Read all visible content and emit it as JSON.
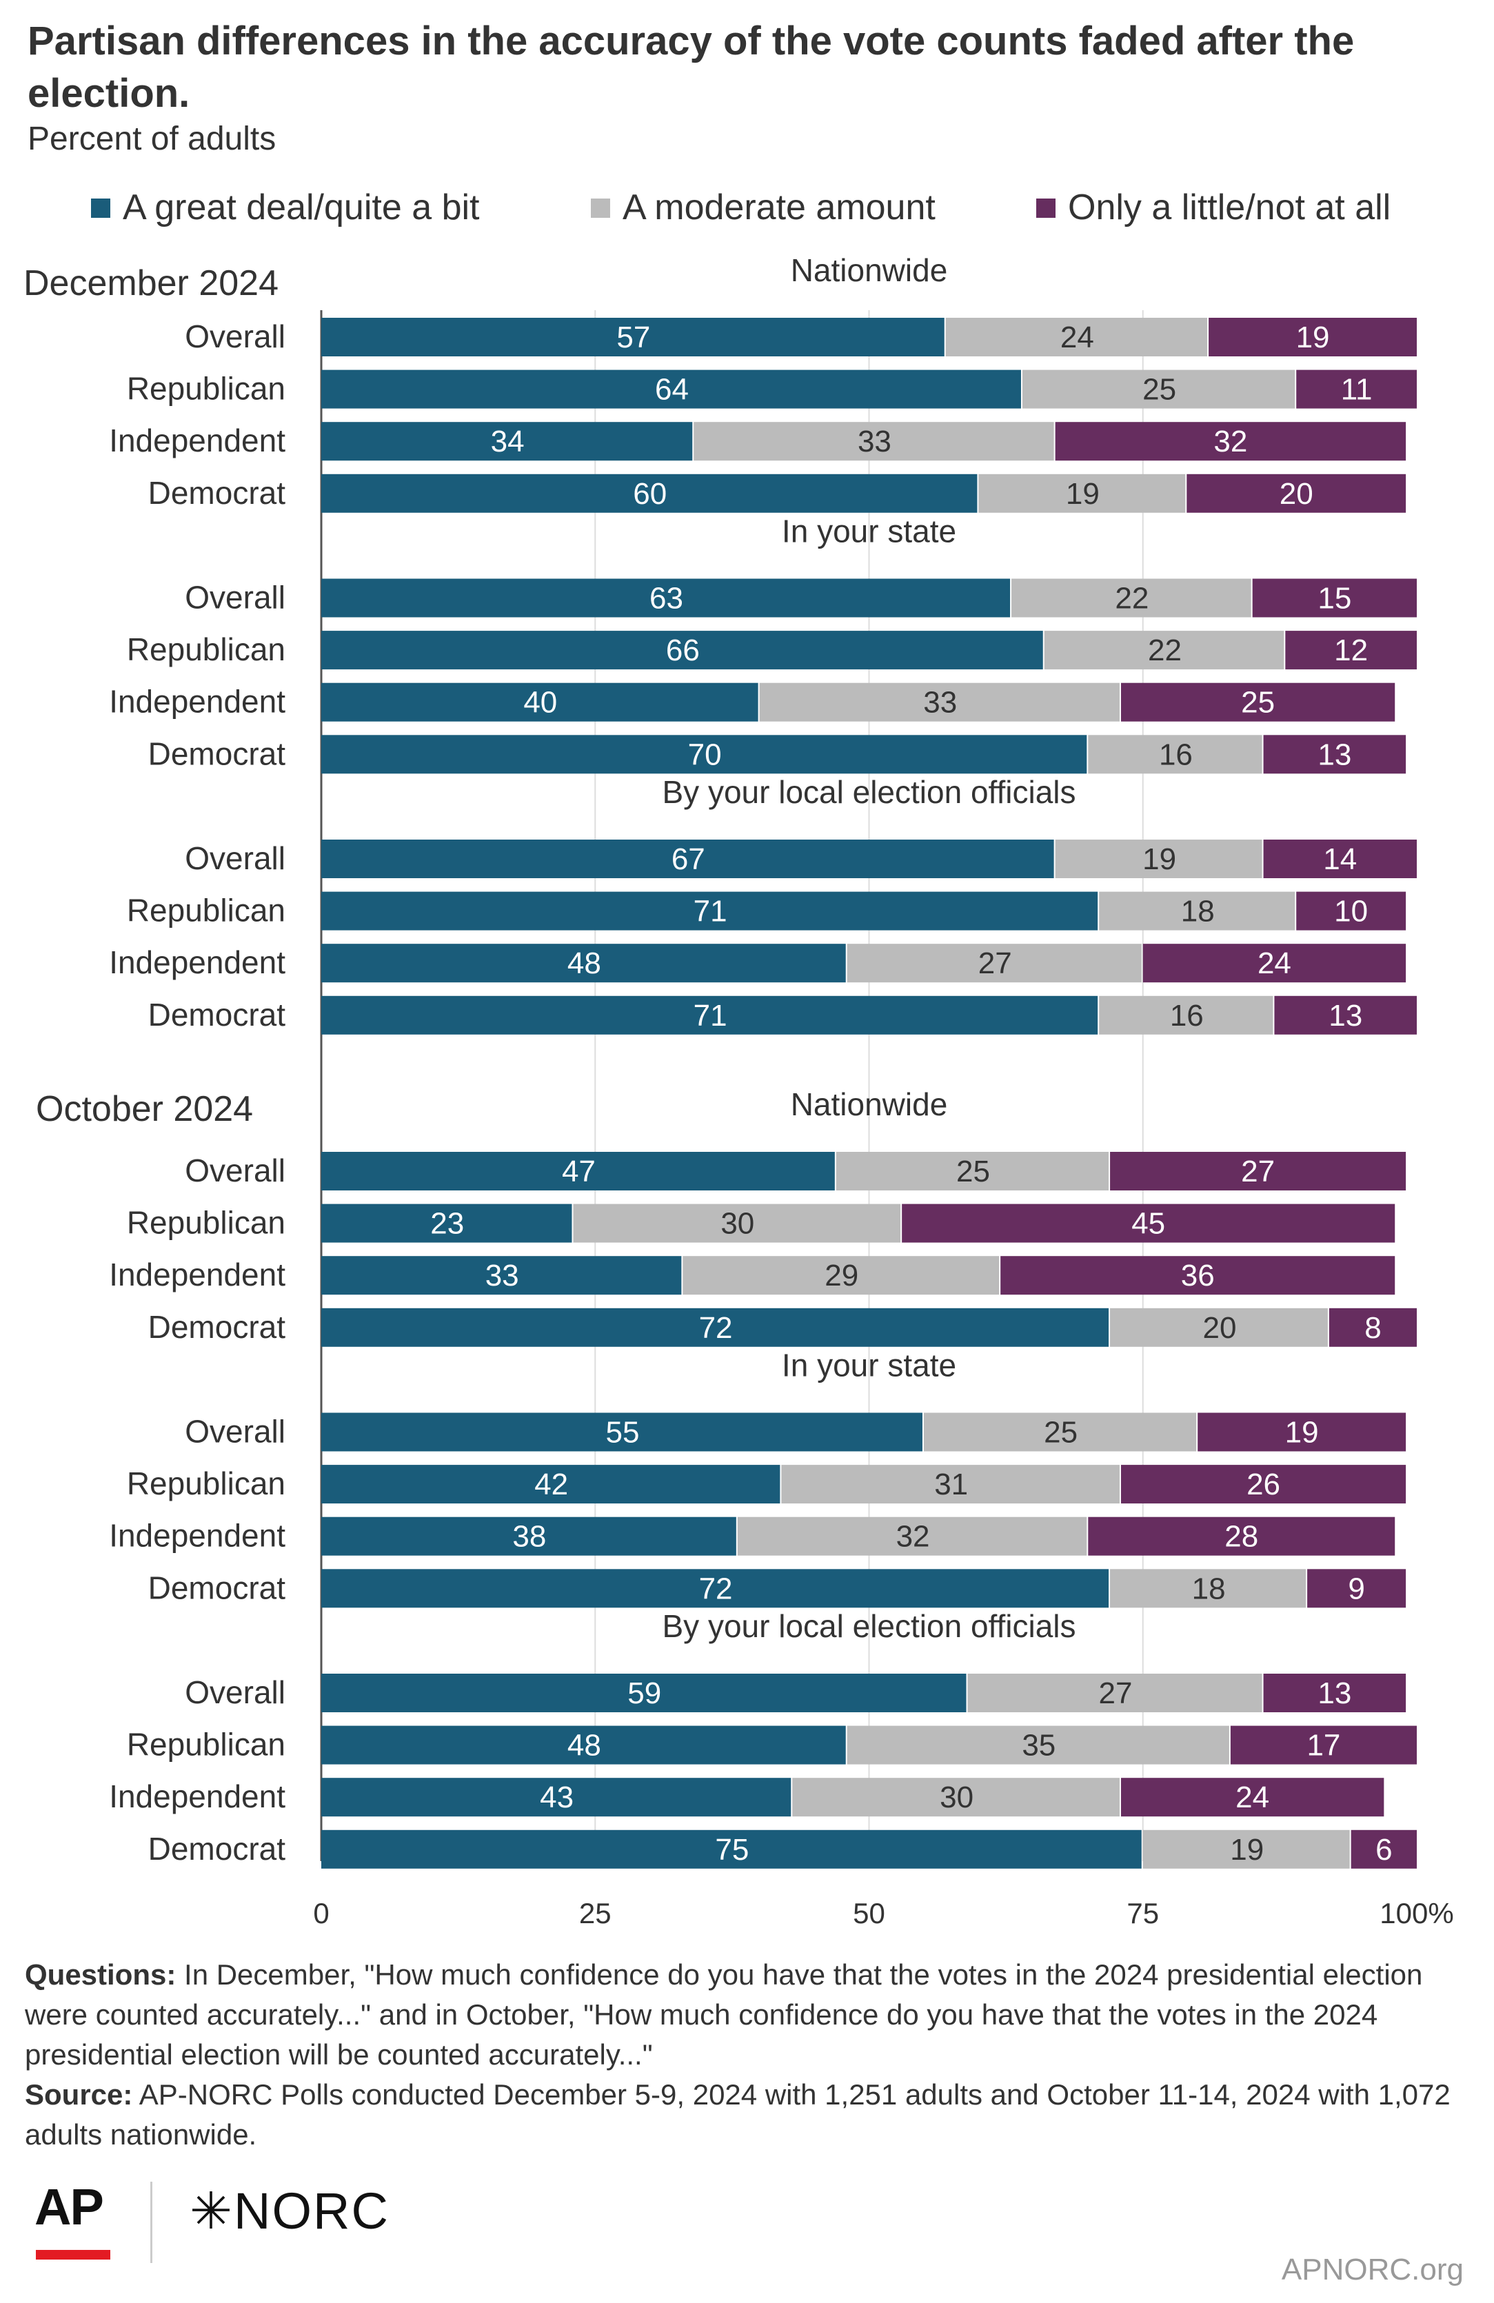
{
  "title": "Partisan differences in the accuracy of the vote counts faded after the election.",
  "subtitle": "Percent of adults",
  "legend": [
    {
      "label": "A great deal/quite a bit",
      "color": "#1a5c7a"
    },
    {
      "label": "A moderate amount",
      "color": "#bbbbbb"
    },
    {
      "label": "Only a little/not at all",
      "color": "#662d5f"
    }
  ],
  "chart_data": {
    "type": "bar",
    "orientation": "horizontal",
    "stacked": true,
    "xlim": [
      0,
      100
    ],
    "xticks": [
      "0",
      "25",
      "50",
      "75",
      "100%"
    ],
    "grid": true,
    "legend_position": "top",
    "series_names": [
      "A great deal/quite a bit",
      "A moderate amount",
      "Only a little/not at all"
    ],
    "panels": [
      {
        "label": "December 2024",
        "groups": [
          {
            "title": "Nationwide",
            "rows": [
              {
                "label": "Overall",
                "values": [
                  57,
                  24,
                  19
                ]
              },
              {
                "label": "Republican",
                "values": [
                  64,
                  25,
                  11
                ]
              },
              {
                "label": "Independent",
                "values": [
                  34,
                  33,
                  32
                ]
              },
              {
                "label": "Democrat",
                "values": [
                  60,
                  19,
                  20
                ]
              }
            ]
          },
          {
            "title": "In your state",
            "rows": [
              {
                "label": "Overall",
                "values": [
                  63,
                  22,
                  15
                ]
              },
              {
                "label": "Republican",
                "values": [
                  66,
                  22,
                  12
                ]
              },
              {
                "label": "Independent",
                "values": [
                  40,
                  33,
                  25
                ]
              },
              {
                "label": "Democrat",
                "values": [
                  70,
                  16,
                  13
                ]
              }
            ]
          },
          {
            "title": "By your local election officials",
            "rows": [
              {
                "label": "Overall",
                "values": [
                  67,
                  19,
                  14
                ]
              },
              {
                "label": "Republican",
                "values": [
                  71,
                  18,
                  10
                ]
              },
              {
                "label": "Independent",
                "values": [
                  48,
                  27,
                  24
                ]
              },
              {
                "label": "Democrat",
                "values": [
                  71,
                  16,
                  13
                ]
              }
            ]
          }
        ]
      },
      {
        "label": "October 2024",
        "groups": [
          {
            "title": "Nationwide",
            "rows": [
              {
                "label": "Overall",
                "values": [
                  47,
                  25,
                  27
                ]
              },
              {
                "label": "Republican",
                "values": [
                  23,
                  30,
                  45
                ]
              },
              {
                "label": "Independent",
                "values": [
                  33,
                  29,
                  36
                ]
              },
              {
                "label": "Democrat",
                "values": [
                  72,
                  20,
                  8
                ]
              }
            ]
          },
          {
            "title": "In your state",
            "rows": [
              {
                "label": "Overall",
                "values": [
                  55,
                  25,
                  19
                ]
              },
              {
                "label": "Republican",
                "values": [
                  42,
                  31,
                  26
                ]
              },
              {
                "label": "Independent",
                "values": [
                  38,
                  32,
                  28
                ]
              },
              {
                "label": "Democrat",
                "values": [
                  72,
                  18,
                  9
                ]
              }
            ]
          },
          {
            "title": "By your local election officials",
            "rows": [
              {
                "label": "Overall",
                "values": [
                  59,
                  27,
                  13
                ]
              },
              {
                "label": "Republican",
                "values": [
                  48,
                  35,
                  17
                ]
              },
              {
                "label": "Independent",
                "values": [
                  43,
                  30,
                  24
                ]
              },
              {
                "label": "Democrat",
                "values": [
                  75,
                  19,
                  6
                ]
              }
            ]
          }
        ]
      }
    ]
  },
  "footnote": {
    "questions_label": "Questions:",
    "questions_text": " In December, \"How much confidence do you have that the votes in the 2024 presidential election were counted accurately...\" and in October, \"How much confidence do you have that the votes in the 2024 presidential election will be counted accurately...\"",
    "source_label": "Source:",
    "source_text": " AP-NORC Polls conducted December 5-9, 2024 with 1,251 adults and October 11-14, 2024 with 1,072 adults nationwide."
  },
  "logos": {
    "ap": "AP",
    "norc": "NORC",
    "norc_mark": "✳"
  },
  "site": "APNORC.org"
}
